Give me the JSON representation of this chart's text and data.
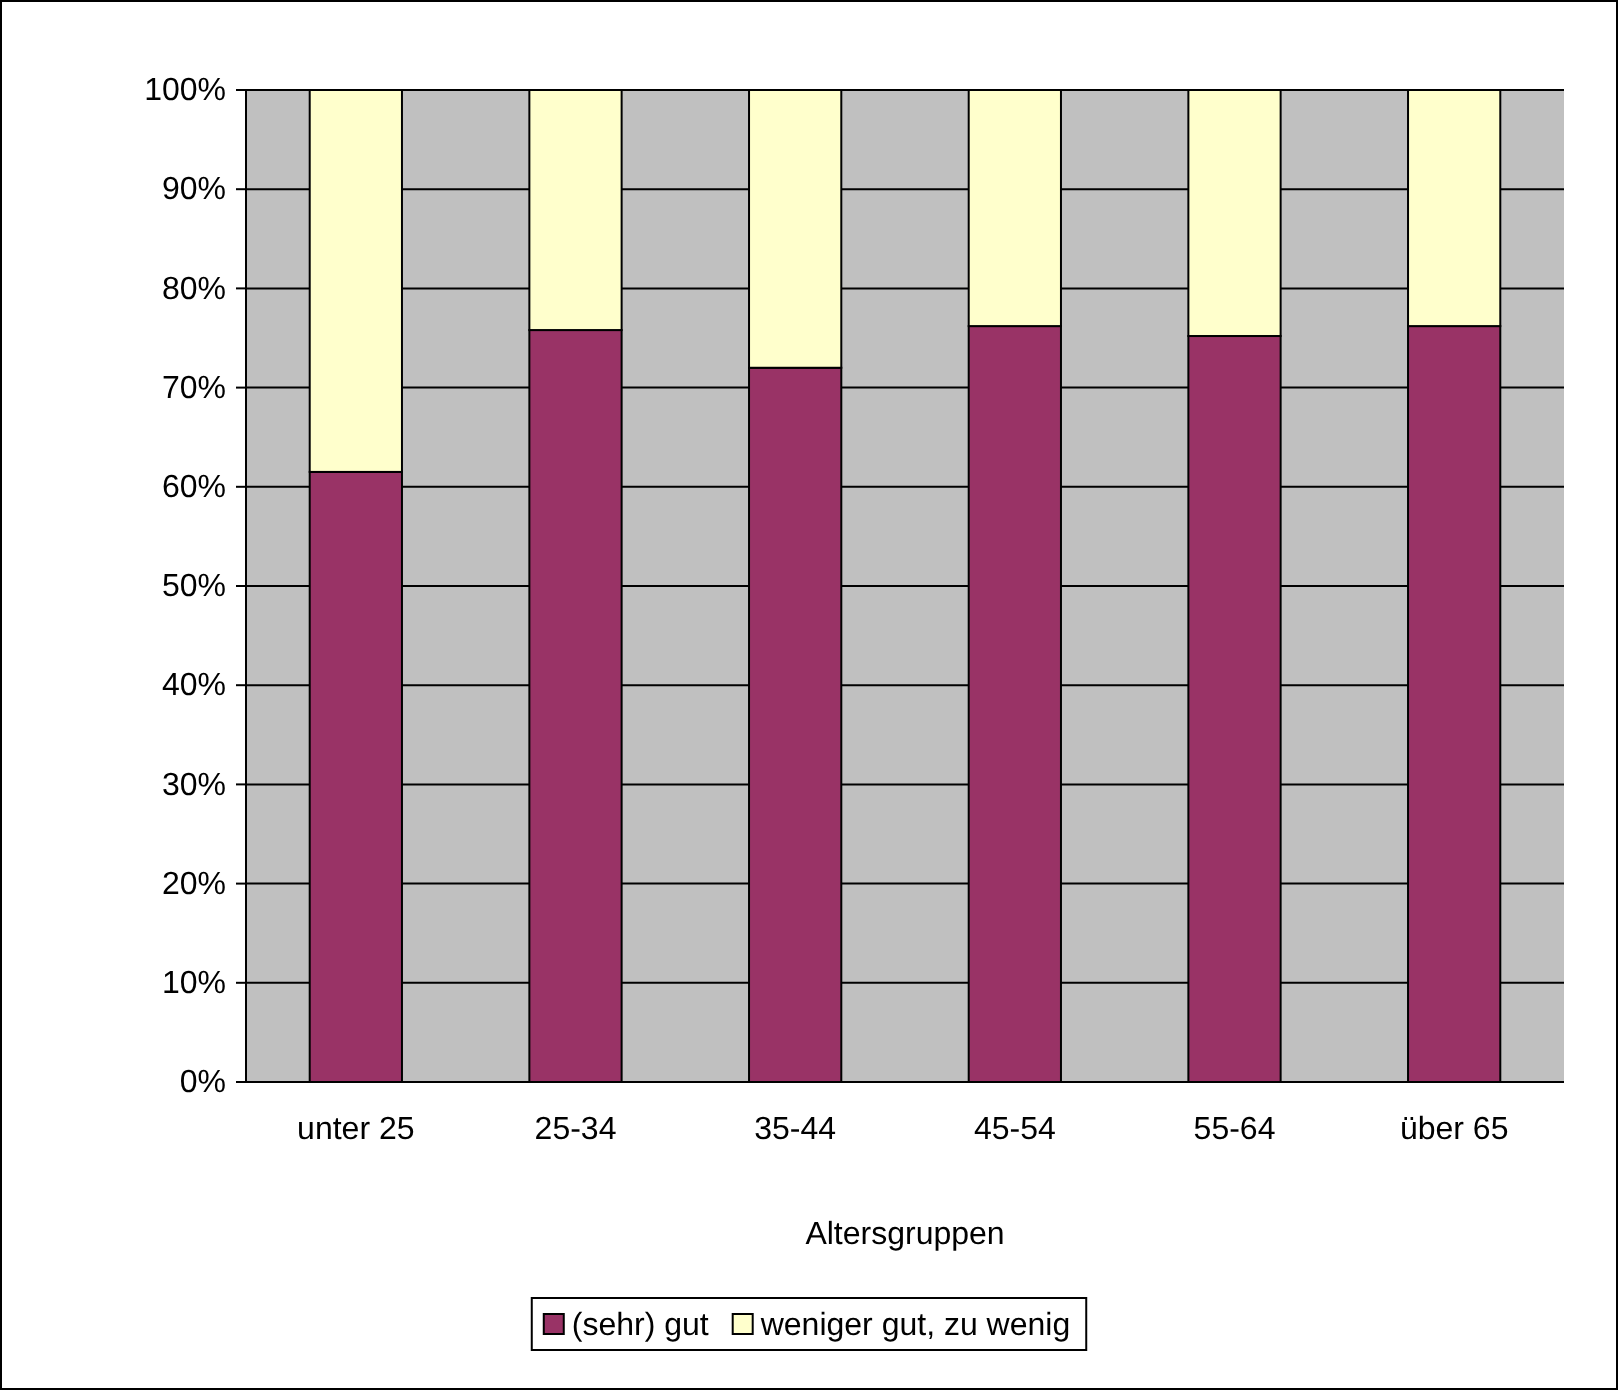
{
  "chart_data": {
    "type": "bar",
    "stacked": true,
    "xlabel": "Altersgruppen",
    "categories": [
      "unter 25",
      "25-34",
      "35-44",
      "45-54",
      "55-64",
      "über 65"
    ],
    "series": [
      {
        "name": "(sehr) gut",
        "color": "#993366",
        "values": [
          61.5,
          75.8,
          72,
          76.2,
          75.2,
          76.2
        ]
      },
      {
        "name": "weniger gut, zu wenig",
        "color": "#ffffcc",
        "values": [
          38.5,
          24.2,
          28,
          23.8,
          24.8,
          23.8
        ]
      }
    ],
    "ylim": [
      0,
      100
    ],
    "yticks": [
      {
        "value": 0,
        "label": "0%"
      },
      {
        "value": 10,
        "label": "10%"
      },
      {
        "value": 20,
        "label": "20%"
      },
      {
        "value": 30,
        "label": "30%"
      },
      {
        "value": 40,
        "label": "40%"
      },
      {
        "value": 50,
        "label": "50%"
      },
      {
        "value": 60,
        "label": "60%"
      },
      {
        "value": 70,
        "label": "70%"
      },
      {
        "value": 80,
        "label": "80%"
      },
      {
        "value": 90,
        "label": "90%"
      },
      {
        "value": 100,
        "label": "100%"
      }
    ],
    "grid": "y",
    "legend": "bottom"
  }
}
